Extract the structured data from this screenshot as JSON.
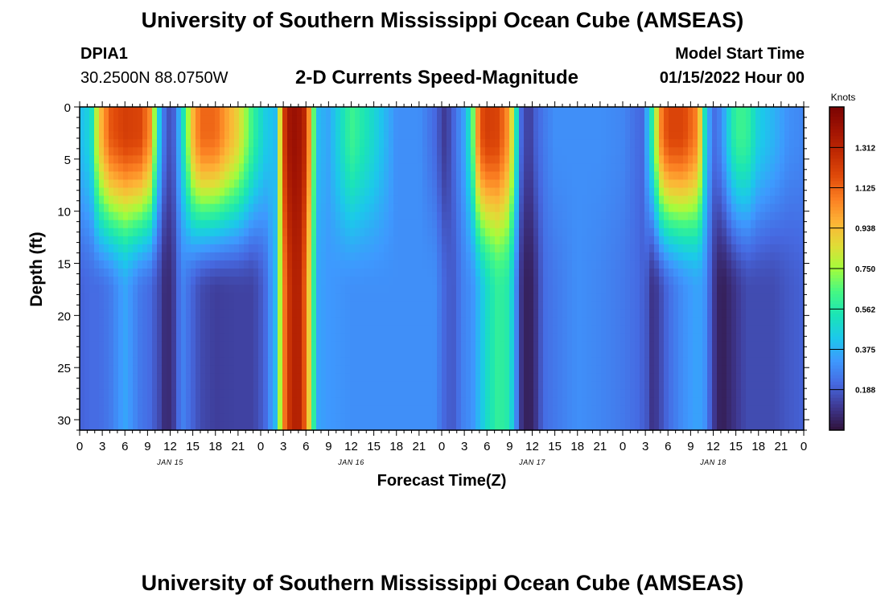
{
  "header": {
    "title": "University of Southern Mississippi Ocean Cube (AMSEAS)",
    "station_id": "DPIA1",
    "coords": "30.2500N  88.0750W",
    "subtitle": "2-D Currents Speed-Magnitude",
    "model_start_label": "Model Start Time",
    "model_start_value": "01/15/2022 Hour 00"
  },
  "footer": {
    "title": "University of Southern Mississippi Ocean Cube (AMSEAS)"
  },
  "chart_data": {
    "type": "heatmap",
    "xlabel": "Forecast Time(Z)",
    "ylabel": "Depth (ft)",
    "x_ticks": [
      "0",
      "3",
      "6",
      "9",
      "12",
      "15",
      "18",
      "21",
      "0",
      "3",
      "6",
      "9",
      "12",
      "15",
      "18",
      "21",
      "0",
      "3",
      "6",
      "9",
      "12",
      "15",
      "18",
      "21",
      "0",
      "3",
      "6",
      "9",
      "12",
      "15",
      "18",
      "21",
      "0"
    ],
    "x_hours_range": [
      0,
      96
    ],
    "day_labels": [
      {
        "label": "JAN 15",
        "hour": 12
      },
      {
        "label": "JAN 16",
        "hour": 36
      },
      {
        "label": "JAN 17",
        "hour": 60
      },
      {
        "label": "JAN 18",
        "hour": 84
      }
    ],
    "y_ticks": [
      "0",
      "5",
      "10",
      "15",
      "20",
      "25",
      "30"
    ],
    "ylim": [
      0,
      31
    ],
    "y_inverted": true,
    "colorbar": {
      "unit": "Knots",
      "ticks": [
        "1.312",
        "1.125",
        "0.938",
        "0.750",
        "0.562",
        "0.375",
        "0.188"
      ],
      "range": [
        0,
        1.5
      ]
    },
    "speed_knots_columns": {
      "hours": [
        0,
        1.5,
        2.5,
        4,
        6,
        8,
        9.3,
        10.5,
        11.5,
        12.5,
        13.5,
        15,
        16,
        18,
        21,
        23,
        24.5,
        26,
        27,
        28,
        29,
        30,
        31.5,
        33,
        36,
        39,
        42,
        45,
        47,
        48.5,
        49.5,
        51,
        52,
        53,
        54,
        55.5,
        57,
        58.5,
        59.5,
        60.5,
        61.5,
        63,
        66,
        69,
        72,
        74,
        74.5,
        75,
        76,
        77,
        78,
        80,
        82,
        83,
        84,
        85,
        85.7,
        86.5,
        87.5,
        88.5,
        90,
        92,
        94,
        96
      ],
      "surface": [
        0.4,
        0.48,
        0.9,
        1.15,
        1.22,
        1.2,
        1.05,
        0.45,
        0.15,
        0.2,
        0.45,
        0.95,
        1.12,
        1.12,
        0.88,
        0.6,
        0.45,
        0.4,
        1.2,
        1.42,
        1.4,
        1.28,
        0.4,
        0.35,
        0.62,
        0.48,
        0.3,
        0.3,
        0.22,
        0.1,
        0.2,
        0.35,
        0.6,
        1.15,
        1.22,
        1.2,
        1.0,
        0.22,
        0.1,
        0.2,
        0.25,
        0.3,
        0.3,
        0.3,
        0.28,
        0.22,
        0.2,
        0.3,
        0.6,
        1.05,
        1.2,
        1.2,
        1.05,
        0.45,
        0.22,
        0.28,
        0.4,
        0.55,
        0.62,
        0.6,
        0.45,
        0.38,
        0.3,
        0.28
      ],
      "bottom": [
        0.2,
        0.22,
        0.22,
        0.25,
        0.35,
        0.25,
        0.22,
        0.15,
        0.05,
        0.12,
        0.28,
        0.2,
        0.15,
        0.12,
        0.13,
        0.13,
        0.2,
        0.4,
        1.05,
        1.3,
        1.35,
        1.1,
        0.35,
        0.32,
        0.3,
        0.3,
        0.3,
        0.3,
        0.3,
        0.2,
        0.18,
        0.28,
        0.3,
        0.4,
        0.5,
        0.6,
        0.55,
        0.1,
        0.02,
        0.1,
        0.22,
        0.25,
        0.3,
        0.28,
        0.25,
        0.22,
        0.2,
        0.2,
        0.08,
        0.15,
        0.22,
        0.3,
        0.35,
        0.3,
        0.12,
        0.03,
        0.05,
        0.08,
        0.12,
        0.15,
        0.15,
        0.15,
        0.18,
        0.2
      ]
    },
    "surface_layer_depth_ft": [
      2,
      18
    ]
  },
  "colors": {
    "colormap": [
      "#30123b",
      "#3e3891",
      "#4669e1",
      "#3e99fe",
      "#1cc8eb",
      "#1be5b5",
      "#46f883",
      "#a4fc3c",
      "#e1dc37",
      "#fdb436",
      "#fb7f22",
      "#e04a0a",
      "#c02a03",
      "#a01303",
      "#7a0403"
    ]
  }
}
